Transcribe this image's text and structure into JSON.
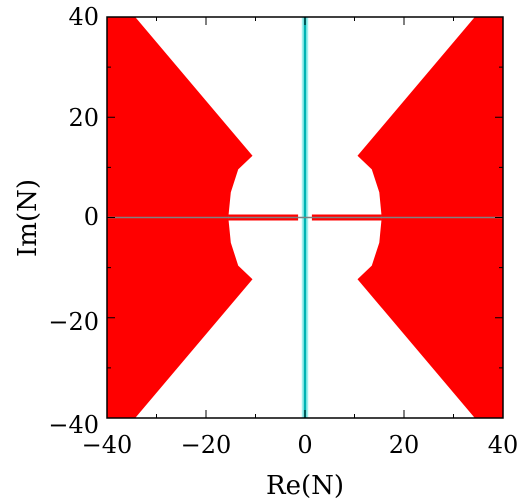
{
  "chart_data": {
    "type": "region",
    "xlabel": "Re(N)",
    "ylabel": "Im(N)",
    "xlim": [
      -40,
      40
    ],
    "ylim": [
      -40,
      40
    ],
    "xticks": [
      -40,
      -20,
      0,
      20,
      40
    ],
    "yticks": [
      -40,
      -20,
      0,
      20,
      40
    ],
    "xtick_labels": [
      "−40",
      "−20",
      "0",
      "20",
      "40"
    ],
    "ytick_labels": [
      "−40",
      "−20",
      "0",
      "20",
      "40"
    ],
    "grid": false,
    "colors": {
      "region": "#ff0000",
      "band_outer": "#9ff0ee",
      "band_inner": "#00b3b3",
      "real_axis": "#808080",
      "frame": "#000000"
    },
    "regions": [
      {
        "name": "left-region",
        "polygon": [
          [
            -40,
            40
          ],
          [
            -34.3,
            40
          ],
          [
            -10.6,
            12.3
          ],
          [
            -13.5,
            9.6
          ],
          [
            -15.0,
            5.0
          ],
          [
            -15.5,
            0
          ],
          [
            -15.0,
            -5.0
          ],
          [
            -13.5,
            -9.6
          ],
          [
            -10.6,
            -12.3
          ],
          [
            -34.3,
            -40
          ],
          [
            -40,
            -40
          ]
        ]
      },
      {
        "name": "right-region",
        "polygon": [
          [
            40,
            40
          ],
          [
            34.3,
            40
          ],
          [
            10.6,
            12.3
          ],
          [
            13.5,
            9.6
          ],
          [
            15.0,
            5.0
          ],
          [
            15.5,
            0
          ],
          [
            15.0,
            -5.0
          ],
          [
            13.5,
            -9.6
          ],
          [
            10.6,
            -12.3
          ],
          [
            34.3,
            -40
          ],
          [
            40,
            -40
          ]
        ]
      },
      {
        "name": "left-real-sliver",
        "polygon": [
          [
            -15.5,
            0.6
          ],
          [
            -1.4,
            0.6
          ],
          [
            -1.4,
            -0.6
          ],
          [
            -15.5,
            -0.6
          ]
        ]
      },
      {
        "name": "right-real-sliver",
        "polygon": [
          [
            1.4,
            0.6
          ],
          [
            15.5,
            0.6
          ],
          [
            15.5,
            -0.6
          ],
          [
            1.4,
            -0.6
          ]
        ]
      }
    ],
    "vertical_band": {
      "center": 0,
      "outer_width": 1.3,
      "inner_width": 0.5
    }
  }
}
